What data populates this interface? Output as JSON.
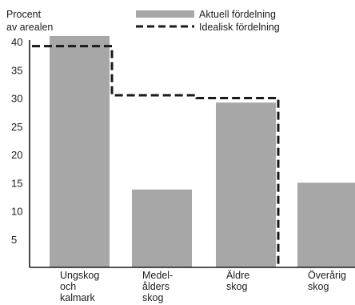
{
  "chart_data": {
    "type": "bar",
    "ylabel": [
      "Procent",
      "av arealen"
    ],
    "ylim": [
      0,
      40
    ],
    "yticks": [
      5,
      10,
      15,
      20,
      25,
      30,
      35,
      40
    ],
    "categories": [
      [
        "Ungskog",
        "och",
        "kalmark"
      ],
      [
        "Medel-",
        "ålders",
        "skog"
      ],
      [
        "Äldre",
        "skog"
      ],
      [
        "Överårig",
        "skog"
      ]
    ],
    "series": [
      {
        "name": "Aktuell fördelning",
        "type": "bar",
        "values": [
          41,
          13.8,
          29.2,
          15
        ]
      },
      {
        "name": "Idealisk fördelning",
        "type": "step-line",
        "values": [
          39.2,
          30.5,
          30,
          0
        ]
      }
    ],
    "legend": "top-right",
    "grid": false,
    "colors": {
      "bar": "#a7a7a7",
      "ideal": "#1a1a1a",
      "axis": "#1a1a1a",
      "text": "#1c1c1c"
    }
  }
}
